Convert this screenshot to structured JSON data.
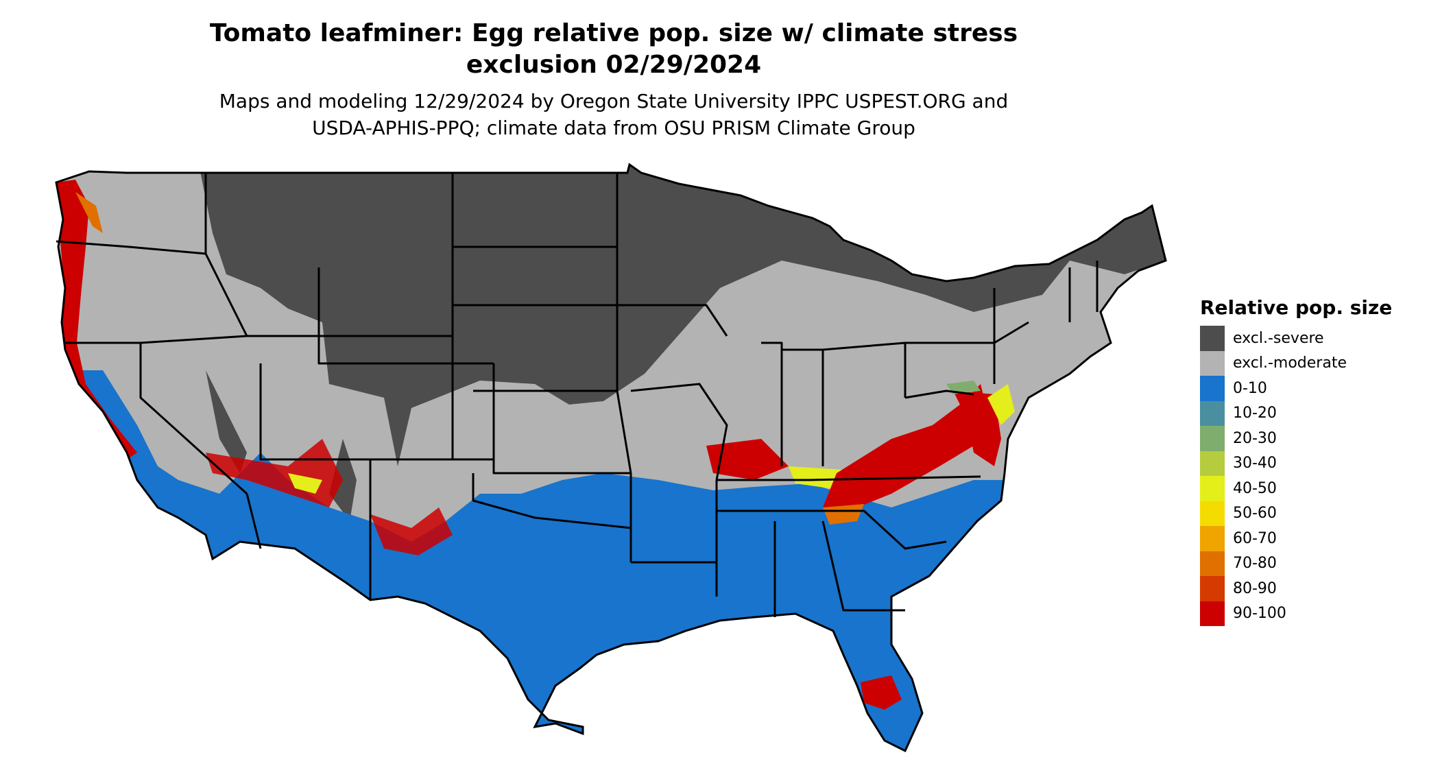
{
  "title_line1": "Tomato leafminer: Egg relative pop. size w/ climate stress",
  "title_line2": "exclusion 02/29/2024",
  "subtitle_line1": "Maps and modeling 12/29/2024 by Oregon State University IPPC USPEST.ORG and",
  "subtitle_line2": "USDA-APHIS-PPQ; climate data from OSU PRISM Climate Group",
  "legend": {
    "title": "Relative pop. size",
    "items": [
      {
        "label": "excl.-severe",
        "color": "#4d4d4d"
      },
      {
        "label": "excl.-moderate",
        "color": "#b3b3b3"
      },
      {
        "label": "0-10",
        "color": "#1874cd"
      },
      {
        "label": "10-20",
        "color": "#4a8f9f"
      },
      {
        "label": "20-30",
        "color": "#7fad6e"
      },
      {
        "label": "30-40",
        "color": "#b5cc3f"
      },
      {
        "label": "40-50",
        "color": "#e4ee1a"
      },
      {
        "label": "50-60",
        "color": "#f5dc00"
      },
      {
        "label": "60-70",
        "color": "#f0a400"
      },
      {
        "label": "70-80",
        "color": "#e07000"
      },
      {
        "label": "80-90",
        "color": "#d53a00"
      },
      {
        "label": "90-100",
        "color": "#cc0000"
      }
    ]
  },
  "colors": {
    "severe": "#4d4d4d",
    "moderate": "#b3b3b3",
    "low": "#1874cd",
    "yellow": "#e4ee1a",
    "orange": "#e07000",
    "red": "#cc0000",
    "border": "#000000"
  }
}
